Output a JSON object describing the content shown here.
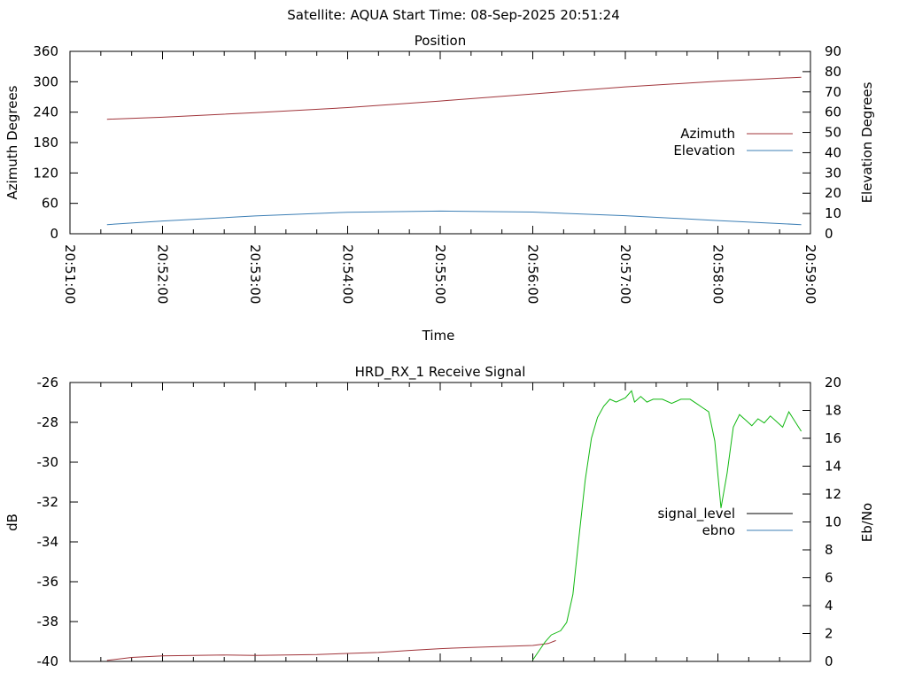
{
  "header": {
    "title": "Satellite: AQUA    Start Time: 08-Sep-2025 20:51:24"
  },
  "colors": {
    "azimuth": "#a0343a",
    "elevation": "#3d7fb5",
    "signal_level": "#a0343a",
    "ebno": "#10b810",
    "ebno_key": "#3d7fb5",
    "axis": "#000000"
  },
  "chart_data": [
    {
      "type": "line",
      "title": "Position",
      "xlabel": "Time",
      "ylabel": "Azimuth Degrees",
      "y2label": "Elevation Degrees",
      "xlim": [
        0,
        480
      ],
      "x_ticks": [
        "20:51:00",
        "20:52:00",
        "20:53:00",
        "20:54:00",
        "20:55:00",
        "20:56:00",
        "20:57:00",
        "20:58:00",
        "20:59:00"
      ],
      "ylim": [
        0,
        360
      ],
      "y_ticks": [
        "0",
        "60",
        "120",
        "180",
        "240",
        "300",
        "360"
      ],
      "y2lim": [
        0,
        90
      ],
      "y2_ticks": [
        "0",
        "10",
        "20",
        "30",
        "40",
        "50",
        "60",
        "70",
        "80",
        "90"
      ],
      "legend": "right",
      "series": [
        {
          "name": "Azimuth",
          "axis": "y",
          "x": [
            24,
            60,
            120,
            180,
            240,
            300,
            360,
            420,
            474
          ],
          "values": [
            226,
            230,
            239,
            249,
            262,
            276,
            290,
            301,
            309
          ]
        },
        {
          "name": "Elevation",
          "axis": "y2",
          "x": [
            24,
            60,
            120,
            180,
            240,
            300,
            360,
            420,
            474
          ],
          "values": [
            4.5,
            6.3,
            8.8,
            10.6,
            11.2,
            10.7,
            8.9,
            6.5,
            4.5
          ]
        }
      ]
    },
    {
      "type": "line",
      "title": "HRD_RX_1 Receive Signal",
      "ylabel": "dB",
      "y2label": "Eb/No",
      "xlim": [
        0,
        480
      ],
      "ylim": [
        -40,
        -26
      ],
      "y_ticks": [
        "-40",
        "-38",
        "-36",
        "-34",
        "-32",
        "-30",
        "-28",
        "-26"
      ],
      "y2lim": [
        0,
        20
      ],
      "y2_ticks": [
        "0",
        "2",
        "4",
        "6",
        "8",
        "10",
        "12",
        "14",
        "16",
        "18",
        "20"
      ],
      "legend": "right",
      "series": [
        {
          "name": "signal_level",
          "axis": "y",
          "x": [
            24,
            40,
            60,
            80,
            100,
            120,
            140,
            160,
            180,
            200,
            220,
            240,
            260,
            280,
            300,
            310,
            315
          ],
          "values": [
            -39.95,
            -39.8,
            -39.72,
            -39.7,
            -39.68,
            -39.7,
            -39.68,
            -39.66,
            -39.6,
            -39.55,
            -39.45,
            -39.36,
            -39.3,
            -39.25,
            -39.2,
            -39.1,
            -38.95
          ]
        },
        {
          "name": "ebno",
          "axis": "y2",
          "x": [
            300,
            308,
            312,
            318,
            322,
            326,
            330,
            334,
            338,
            342,
            346,
            350,
            354,
            360,
            364,
            366,
            370,
            374,
            378,
            384,
            390,
            396,
            402,
            406,
            410,
            414,
            418,
            422,
            426,
            430,
            434,
            438,
            442,
            446,
            450,
            454,
            458,
            462,
            466,
            470,
            474
          ],
          "values": [
            0.1,
            1.4,
            1.9,
            2.2,
            2.8,
            4.8,
            9,
            13,
            16,
            17.5,
            18.3,
            18.8,
            18.6,
            18.9,
            19.4,
            18.6,
            19,
            18.6,
            18.8,
            18.8,
            18.5,
            18.8,
            18.8,
            18.5,
            18.2,
            17.9,
            15.8,
            11,
            13.5,
            16.8,
            17.7,
            17.3,
            16.9,
            17.4,
            17.1,
            17.6,
            17.2,
            16.8,
            17.9,
            17.2,
            16.5
          ]
        }
      ]
    }
  ]
}
